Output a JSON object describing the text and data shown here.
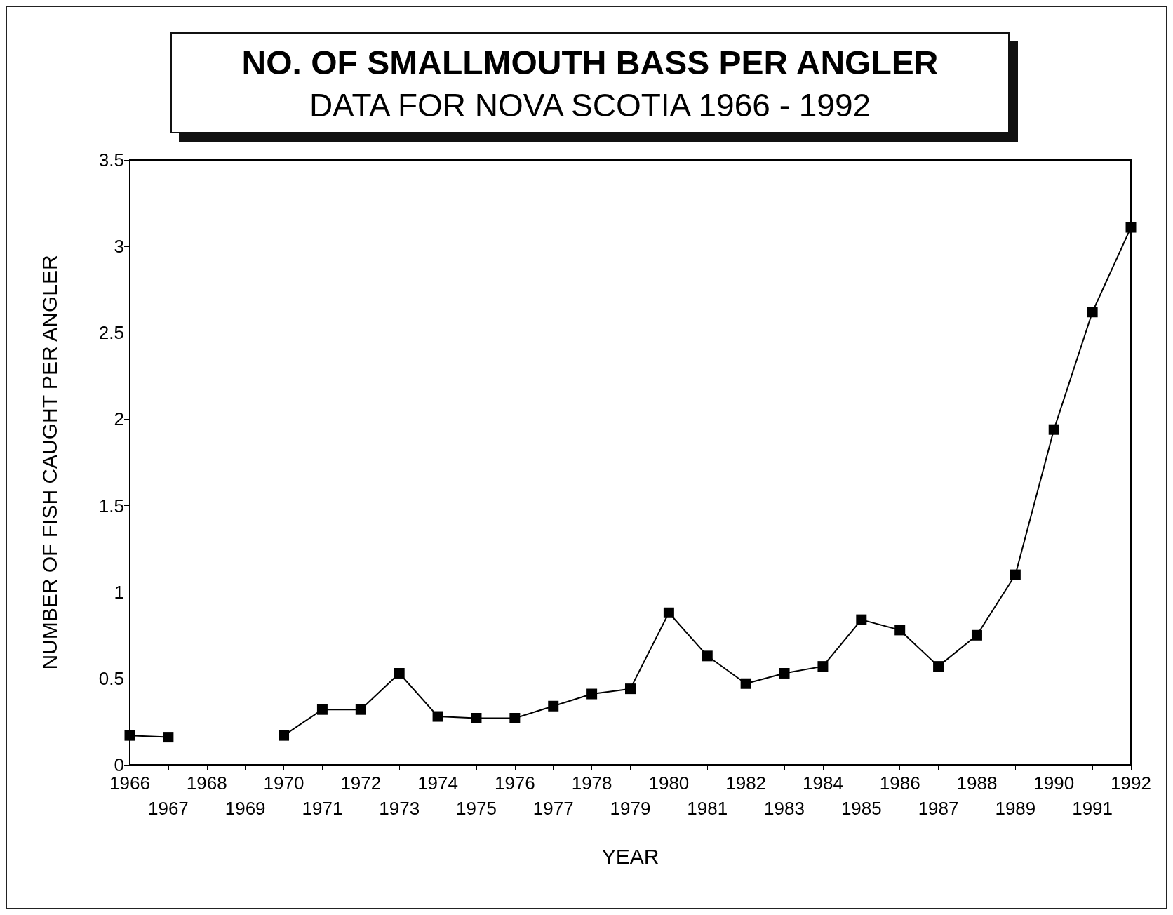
{
  "chart_data": {
    "type": "line",
    "title": "NO. OF SMALLMOUTH BASS PER ANGLER",
    "subtitle": "DATA FOR NOVA SCOTIA 1966 - 1992",
    "xlabel": "YEAR",
    "ylabel": "NUMBER OF FISH CAUGHT PER ANGLER",
    "categories": [
      "1966",
      "1967",
      "1968",
      "1969",
      "1970",
      "1971",
      "1972",
      "1973",
      "1974",
      "1975",
      "1976",
      "1977",
      "1978",
      "1979",
      "1980",
      "1981",
      "1982",
      "1983",
      "1984",
      "1985",
      "1986",
      "1987",
      "1988",
      "1989",
      "1990",
      "1991",
      "1992"
    ],
    "series": [
      {
        "color": "#000000",
        "values": [
          0.17,
          0.16,
          null,
          null,
          0.17,
          0.32,
          0.32,
          0.53,
          0.28,
          0.27,
          0.27,
          0.34,
          0.41,
          0.44,
          0.88,
          0.63,
          0.47,
          0.53,
          0.57,
          0.84,
          0.78,
          0.57,
          0.75,
          1.1,
          1.94,
          2.62,
          3.11
        ]
      }
    ],
    "ylim": [
      0,
      3.5
    ],
    "yticks": [
      0,
      0.5,
      1,
      1.5,
      2,
      2.5,
      3,
      3.5
    ],
    "grid": false,
    "marker": "square",
    "line_style": "solid"
  }
}
